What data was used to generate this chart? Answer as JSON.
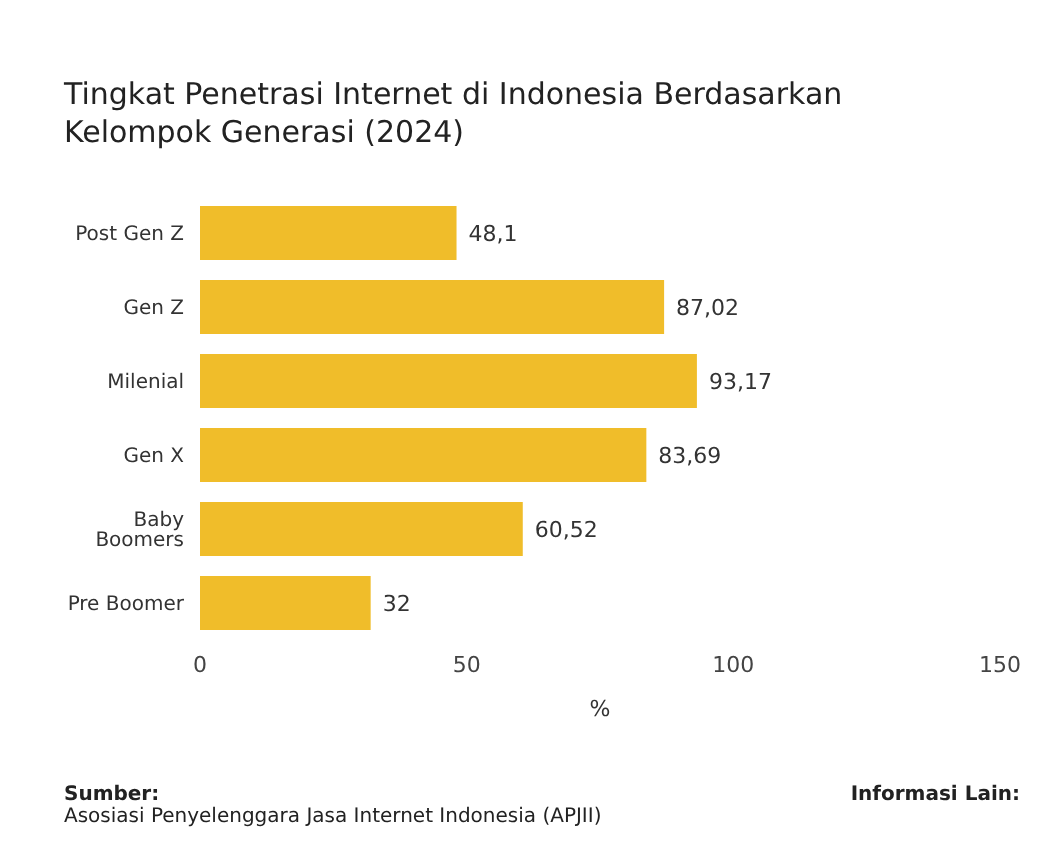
{
  "chart_data": {
    "type": "bar",
    "orientation": "horizontal",
    "title": "Tingkat Penetrasi Internet di Indonesia Berdasarkan Kelompok Generasi (2024)",
    "xlabel": "%",
    "categories": [
      "Post Gen Z",
      "Gen Z",
      "Milenial",
      "Gen X",
      "Baby Boomers",
      "Pre Boomer"
    ],
    "values": [
      48.1,
      87.02,
      93.17,
      83.69,
      60.52,
      32
    ],
    "value_labels": [
      "48,1",
      "87,02",
      "93,17",
      "83,69",
      "60,52",
      "32"
    ],
    "color": "#f0bd2a",
    "xlim": [
      0,
      150
    ],
    "xticks": [
      0,
      50,
      100,
      150
    ],
    "grid": false,
    "legend": false,
    "annotations": [
      "Sumber:",
      "Asosiasi Penyelenggara Jasa Internet Indonesia (APJII)",
      "Informasi Lain:"
    ]
  }
}
